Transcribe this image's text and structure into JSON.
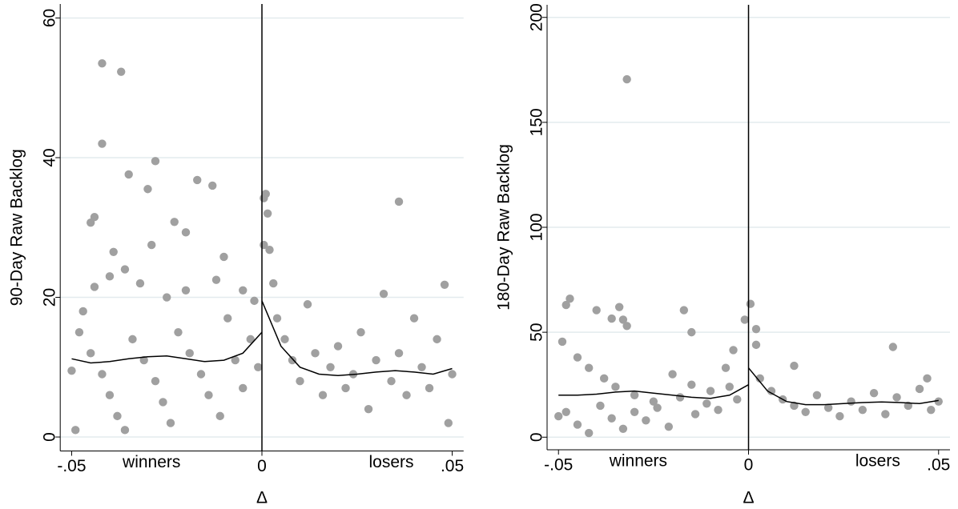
{
  "chart_data": [
    {
      "type": "scatter",
      "ylabel": "90-Day Raw Backlog",
      "xlabel": "Δ",
      "annotations": [
        {
          "text": "winners",
          "x": -0.029
        },
        {
          "text": "losers",
          "x": 0.034
        }
      ],
      "xline": 0,
      "xlim": [
        -0.053,
        0.053
      ],
      "ylim": [
        -2,
        62
      ],
      "xticks": [
        {
          "value": -0.05,
          "label": "-.05"
        },
        0,
        {
          "value": 0.05,
          "label": ".05"
        }
      ],
      "yticks": [
        0,
        20,
        40,
        60
      ],
      "grid": true,
      "series": [
        {
          "kind": "points",
          "color": "#a0a0a0",
          "x": [
            -0.042,
            -0.037,
            -0.042,
            -0.035,
            -0.028,
            -0.03,
            -0.017,
            -0.013,
            -0.044,
            -0.045,
            -0.023,
            -0.02,
            -0.029,
            -0.039,
            -0.01,
            0.0005,
            0.001,
            0.0015,
            0.0005,
            0.002,
            0.036,
            -0.047,
            -0.044,
            -0.04,
            -0.036,
            -0.032,
            -0.025,
            -0.02,
            -0.012,
            -0.005,
            -0.002,
            -0.048,
            -0.045,
            -0.042,
            -0.04,
            -0.038,
            -0.036,
            -0.034,
            -0.031,
            -0.028,
            -0.026,
            -0.024,
            -0.022,
            -0.019,
            -0.016,
            -0.014,
            -0.011,
            -0.009,
            -0.007,
            -0.005,
            -0.003,
            -0.001,
            0.003,
            0.004,
            0.006,
            0.008,
            0.01,
            0.012,
            0.014,
            0.016,
            0.018,
            0.02,
            0.022,
            0.024,
            0.026,
            0.028,
            0.03,
            0.032,
            0.034,
            0.036,
            0.038,
            0.04,
            0.042,
            0.044,
            0.046,
            0.048,
            0.049,
            -0.05,
            -0.049,
            0.05
          ],
          "values": [
            53.5,
            52.3,
            42,
            37.6,
            39.5,
            35.5,
            36.8,
            36,
            31.5,
            30.7,
            30.8,
            29.3,
            27.5,
            26.5,
            25.8,
            34.2,
            34.8,
            32,
            27.5,
            26.8,
            33.7,
            18,
            21.5,
            23,
            24,
            22,
            20,
            21,
            22.5,
            21,
            19.5,
            15,
            12,
            9,
            6,
            3,
            1,
            14,
            11,
            8,
            5,
            2,
            15,
            12,
            9,
            6,
            3,
            17,
            11,
            7,
            14,
            10,
            22,
            17,
            14,
            11,
            8,
            19,
            12,
            6,
            10,
            13,
            7,
            9,
            15,
            4,
            11,
            20.5,
            8,
            12,
            6,
            17,
            10,
            7,
            14,
            21.8,
            2,
            9.5,
            1,
            9
          ]
        },
        {
          "kind": "line",
          "color": "#000000",
          "x": [
            -0.05,
            -0.045,
            -0.04,
            -0.035,
            -0.03,
            -0.025,
            -0.02,
            -0.015,
            -0.01,
            -0.005,
            0,
            null,
            0,
            0.005,
            0.01,
            0.015,
            0.02,
            0.025,
            0.03,
            0.035,
            0.04,
            0.045,
            0.05
          ],
          "values": [
            11.2,
            10.6,
            10.8,
            11.2,
            11.5,
            11.6,
            11.2,
            10.8,
            11,
            12,
            15,
            null,
            19.5,
            13,
            10,
            9,
            8.8,
            9,
            9.3,
            9.5,
            9.3,
            9,
            9.8
          ]
        }
      ]
    },
    {
      "type": "scatter",
      "ylabel": "180-Day Raw Backlog",
      "xlabel": "Δ",
      "annotations": [
        {
          "text": "winners",
          "x": -0.029
        },
        {
          "text": "losers",
          "x": 0.034
        }
      ],
      "xline": 0,
      "xlim": [
        -0.053,
        0.053
      ],
      "ylim": [
        -6,
        206
      ],
      "xticks": [
        {
          "value": -0.05,
          "label": "-.05"
        },
        0,
        {
          "value": 0.05,
          "label": ".05"
        }
      ],
      "yticks": [
        0,
        50,
        100,
        150,
        200
      ],
      "grid": true,
      "series": [
        {
          "kind": "points",
          "color": "#a0a0a0",
          "x": [
            -0.032,
            -0.048,
            -0.047,
            -0.04,
            -0.034,
            -0.033,
            -0.036,
            -0.032,
            -0.017,
            -0.015,
            -0.001,
            0.0005,
            0.002,
            0.002,
            -0.004,
            0.012,
            0.038,
            -0.049,
            -0.045,
            -0.042,
            -0.038,
            -0.035,
            -0.03,
            -0.025,
            -0.02,
            -0.015,
            -0.01,
            -0.006,
            -0.003,
            -0.048,
            -0.045,
            -0.042,
            -0.039,
            -0.036,
            -0.033,
            -0.03,
            -0.027,
            -0.024,
            -0.021,
            -0.018,
            -0.014,
            -0.011,
            -0.008,
            -0.005,
            0.003,
            0.006,
            0.009,
            0.012,
            0.015,
            0.018,
            0.021,
            0.024,
            0.027,
            0.03,
            0.033,
            0.036,
            0.039,
            0.042,
            0.045,
            0.048,
            0.05,
            0.047,
            -0.05
          ],
          "values": [
            170.5,
            63,
            66,
            60.5,
            62,
            56,
            56.5,
            53,
            60.5,
            50,
            56,
            63.5,
            51.5,
            44,
            41.5,
            34,
            43,
            45.5,
            38,
            33,
            28,
            24,
            20,
            17,
            30,
            25,
            22,
            33,
            18,
            12,
            6,
            2,
            15,
            9,
            4,
            12,
            8,
            14,
            5,
            19,
            11,
            16,
            13,
            24,
            28,
            22,
            18,
            15,
            12,
            20,
            14,
            10,
            17,
            13,
            21,
            11,
            19,
            15,
            23,
            13,
            17,
            28,
            10
          ]
        },
        {
          "kind": "line",
          "color": "#000000",
          "x": [
            -0.05,
            -0.045,
            -0.04,
            -0.035,
            -0.03,
            -0.025,
            -0.02,
            -0.015,
            -0.01,
            -0.005,
            0,
            null,
            0,
            0.005,
            0.01,
            0.015,
            0.02,
            0.025,
            0.03,
            0.035,
            0.04,
            0.045,
            0.05
          ],
          "values": [
            20,
            20,
            20.5,
            21.5,
            22,
            21,
            20,
            19,
            18.5,
            20,
            25,
            null,
            33,
            22,
            17,
            15.5,
            15.5,
            16,
            16.5,
            16.8,
            16.5,
            16,
            17.5
          ]
        }
      ]
    }
  ]
}
